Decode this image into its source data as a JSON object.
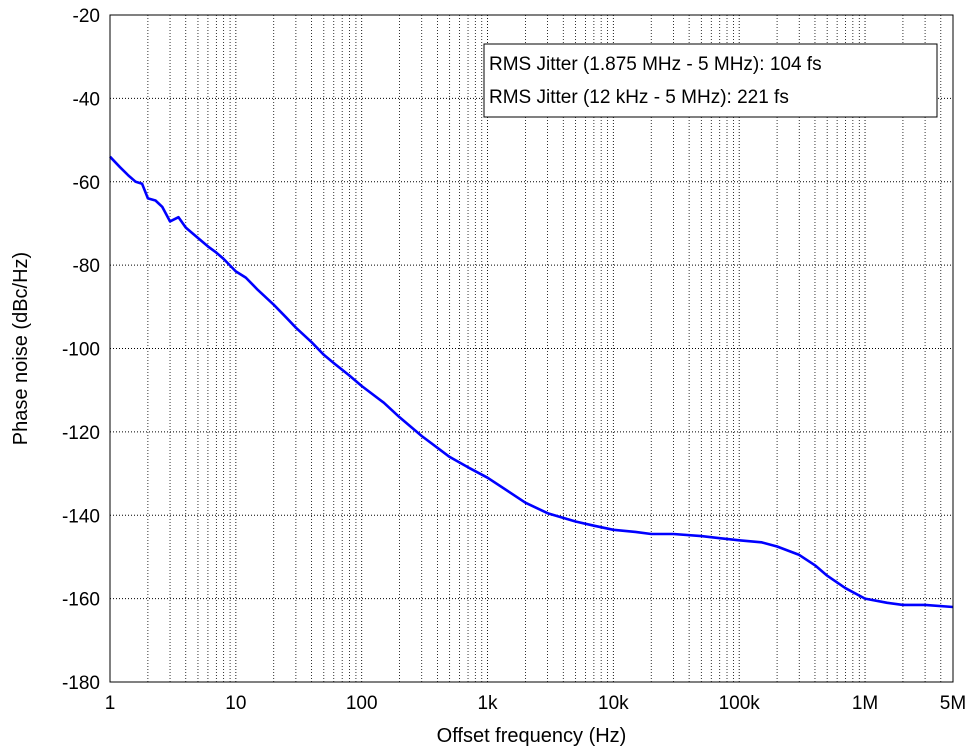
{
  "chart_data": {
    "type": "line",
    "title": "",
    "xlabel": "Offset frequency (Hz)",
    "ylabel": "Phase noise (dBc/Hz)",
    "xscale": "log",
    "xlim": [
      1,
      5000000
    ],
    "ylim": [
      -180,
      -20
    ],
    "grid": true,
    "xticks": [
      {
        "value": 1,
        "label": "1"
      },
      {
        "value": 10,
        "label": "10"
      },
      {
        "value": 100,
        "label": "100"
      },
      {
        "value": 1000,
        "label": "1k"
      },
      {
        "value": 10000,
        "label": "10k"
      },
      {
        "value": 100000,
        "label": "100k"
      },
      {
        "value": 1000000,
        "label": "1M"
      },
      {
        "value": 5000000,
        "label": "5M"
      }
    ],
    "yticks": [
      {
        "value": -20,
        "label": "-20"
      },
      {
        "value": -40,
        "label": "-40"
      },
      {
        "value": -60,
        "label": "-60"
      },
      {
        "value": -80,
        "label": "-80"
      },
      {
        "value": -100,
        "label": "-100"
      },
      {
        "value": -120,
        "label": "-120"
      },
      {
        "value": -140,
        "label": "-140"
      },
      {
        "value": -160,
        "label": "-160"
      },
      {
        "value": -180,
        "label": "-180"
      }
    ],
    "legend_position": "top-right",
    "annotations": [
      "RMS Jitter (1.875 MHz - 5 MHz): 104 fs",
      "RMS Jitter (12 kHz - 5 MHz): 221 fs"
    ],
    "series": [
      {
        "color": "#0000ff",
        "points": [
          [
            1,
            -54
          ],
          [
            1.2,
            -56.5
          ],
          [
            1.4,
            -58.5
          ],
          [
            1.6,
            -60
          ],
          [
            1.8,
            -60.5
          ],
          [
            2,
            -64
          ],
          [
            2.3,
            -64.5
          ],
          [
            2.6,
            -66
          ],
          [
            3,
            -69.5
          ],
          [
            3.5,
            -68.5
          ],
          [
            4,
            -71
          ],
          [
            5,
            -73.5
          ],
          [
            6,
            -75.5
          ],
          [
            7,
            -77
          ],
          [
            8,
            -78.5
          ],
          [
            10,
            -81.5
          ],
          [
            12,
            -83
          ],
          [
            15,
            -86
          ],
          [
            20,
            -89.5
          ],
          [
            25,
            -92.5
          ],
          [
            30,
            -95
          ],
          [
            40,
            -98.5
          ],
          [
            50,
            -101.5
          ],
          [
            60,
            -103.5
          ],
          [
            80,
            -106.5
          ],
          [
            100,
            -109
          ],
          [
            150,
            -113
          ],
          [
            200,
            -116.5
          ],
          [
            300,
            -121
          ],
          [
            500,
            -126
          ],
          [
            700,
            -128.5
          ],
          [
            1000,
            -131
          ],
          [
            1500,
            -134.5
          ],
          [
            2000,
            -137
          ],
          [
            3000,
            -139.5
          ],
          [
            5000,
            -141.5
          ],
          [
            7000,
            -142.5
          ],
          [
            10000,
            -143.5
          ],
          [
            15000,
            -144
          ],
          [
            20000,
            -144.5
          ],
          [
            30000,
            -144.5
          ],
          [
            50000,
            -145
          ],
          [
            70000,
            -145.5
          ],
          [
            100000,
            -146
          ],
          [
            150000,
            -146.5
          ],
          [
            200000,
            -147.5
          ],
          [
            300000,
            -149.5
          ],
          [
            400000,
            -152
          ],
          [
            500000,
            -154.5
          ],
          [
            700000,
            -157.5
          ],
          [
            1000000,
            -160
          ],
          [
            1500000,
            -161
          ],
          [
            2000000,
            -161.5
          ],
          [
            3000000,
            -161.5
          ],
          [
            5000000,
            -162
          ]
        ]
      }
    ]
  }
}
